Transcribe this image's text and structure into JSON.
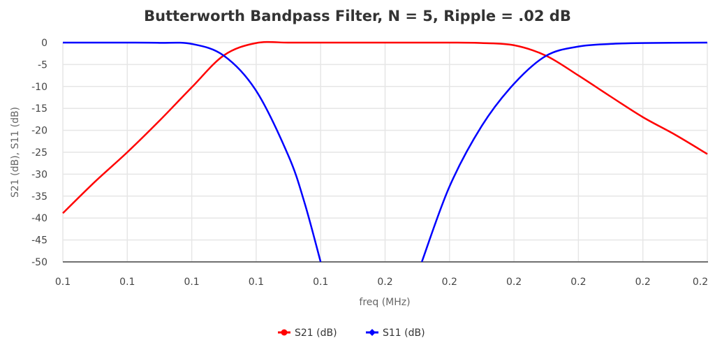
{
  "chart_data": {
    "type": "line",
    "title": "Butterworth Bandpass Filter, N = 5, Ripple = .02 dB",
    "xlabel": "freq (MHz)",
    "ylabel": "S21 (dB), S11 (dB)",
    "xlim": [
      0.1,
      0.2
    ],
    "ylim": [
      -50,
      0
    ],
    "grid": true,
    "legend_position": "bottom",
    "x_ticks": [
      0.1,
      0.11,
      0.12,
      0.13,
      0.14,
      0.15,
      0.16,
      0.17,
      0.18,
      0.19,
      0.2
    ],
    "x_tick_labels": [
      "0.1",
      "0.1",
      "0.1",
      "0.1",
      "0.1",
      "0.2",
      "0.2",
      "0.2",
      "0.2",
      "0.2",
      "0.2"
    ],
    "y_ticks": [
      0,
      -5,
      -10,
      -15,
      -20,
      -25,
      -30,
      -35,
      -40,
      -45,
      -50
    ],
    "y_tick_labels": [
      "0",
      "-5",
      "-10",
      "-15",
      "-20",
      "-25",
      "-30",
      "-35",
      "-40",
      "-45",
      "-50"
    ],
    "series": [
      {
        "name": "S21 (dB)",
        "color": "#ff0000",
        "x": [
          0.1,
          0.105,
          0.11,
          0.115,
          0.12,
          0.125,
          0.13,
          0.135,
          0.14,
          0.15,
          0.16,
          0.165,
          0.17,
          0.175,
          0.18,
          0.185,
          0.19,
          0.195,
          0.2
        ],
        "values": [
          -38.9,
          -31.7,
          -25,
          -17.8,
          -10.2,
          -2.9,
          -0.1,
          0,
          0,
          0,
          0,
          -0.1,
          -0.6,
          -3,
          -7.5,
          -12.3,
          -17,
          -21,
          -25.4
        ]
      },
      {
        "name": "S11 (dB)",
        "color": "#0000ff",
        "x": [
          0.1,
          0.11,
          0.115,
          0.12,
          0.125,
          0.13,
          0.135,
          0.1375,
          0.14,
          null,
          0.1557,
          0.16,
          0.165,
          0.17,
          0.175,
          0.18,
          0.185,
          0.19,
          0.2
        ],
        "values": [
          0,
          0,
          -0.05,
          -0.3,
          -3,
          -11,
          -25.8,
          -36.5,
          -50,
          null,
          -50,
          -32.8,
          -19,
          -9.4,
          -3,
          -0.9,
          -0.3,
          -0.1,
          0
        ]
      }
    ]
  }
}
